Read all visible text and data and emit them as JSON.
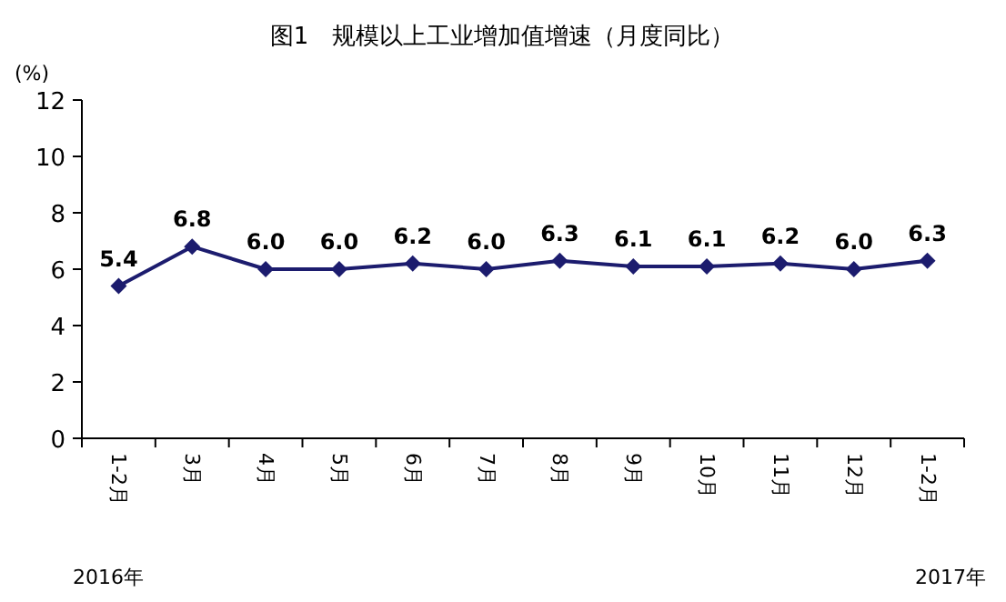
{
  "chart_data": {
    "type": "line",
    "title": "图1　规模以上工业增加值增速（月度同比）",
    "ylabel": "(%)",
    "categories": [
      "1-2月",
      "3月",
      "4月",
      "5月",
      "6月",
      "7月",
      "8月",
      "9月",
      "10月",
      "11月",
      "12月",
      "1-2月"
    ],
    "series": [
      {
        "color": "#1c1c6e",
        "values": [
          5.4,
          6.8,
          6.0,
          6.0,
          6.2,
          6.0,
          6.3,
          6.1,
          6.1,
          6.2,
          6.0,
          6.3
        ],
        "value_labels": [
          "5.4",
          "6.8",
          "6.0",
          "6.0",
          "6.2",
          "6.0",
          "6.3",
          "6.1",
          "6.1",
          "6.2",
          "6.0",
          "6.3"
        ]
      }
    ],
    "ylim": [
      0,
      12
    ],
    "yticks": [
      0,
      2,
      4,
      6,
      8,
      10,
      12
    ],
    "marker": "diamond",
    "line_style": "solid",
    "grid": false,
    "annotations": [
      "2016年",
      "2017年"
    ]
  }
}
